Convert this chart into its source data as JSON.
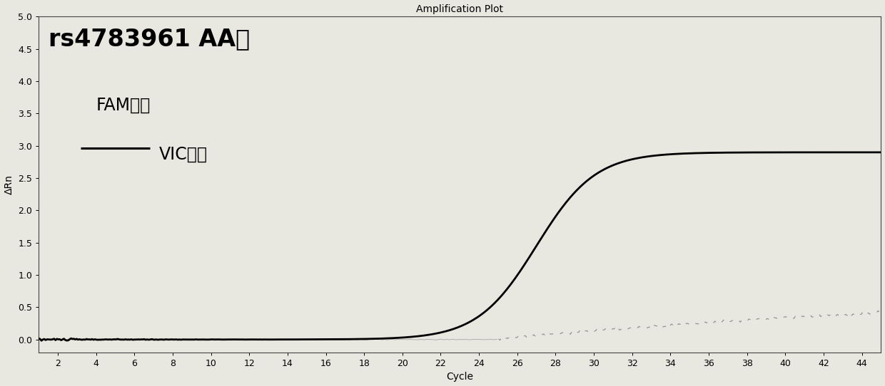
{
  "title": "Amplification Plot",
  "xlabel": "Cycle",
  "ylabel": "ΔRn",
  "annotation_title": "rs4783961 AA型",
  "legend_fam": "FAM标记",
  "legend_vic": "VIC标记",
  "x_min": 1,
  "x_max": 45,
  "y_min": -0.2,
  "y_max": 5.0,
  "y_ticks": [
    0.0,
    0.5,
    1.0,
    1.5,
    2.0,
    2.5,
    3.0,
    3.5,
    4.0,
    4.5,
    5.0
  ],
  "x_ticks": [
    2,
    4,
    6,
    8,
    10,
    12,
    14,
    16,
    18,
    20,
    22,
    24,
    26,
    28,
    30,
    32,
    34,
    36,
    38,
    40,
    42,
    44
  ],
  "vic_color": "#000000",
  "fam_color": "#777777",
  "background_color": "#e8e8e0",
  "title_fontsize": 10,
  "axis_label_fontsize": 10,
  "tick_fontsize": 9,
  "annotation_fontsize": 24,
  "legend_fontsize": 17,
  "vic_sigmoid_L": 2.9,
  "vic_sigmoid_k": 0.65,
  "vic_sigmoid_x0": 27.0,
  "fam_rise_start": 25,
  "fam_rise_end": 45,
  "fam_max": 0.42
}
